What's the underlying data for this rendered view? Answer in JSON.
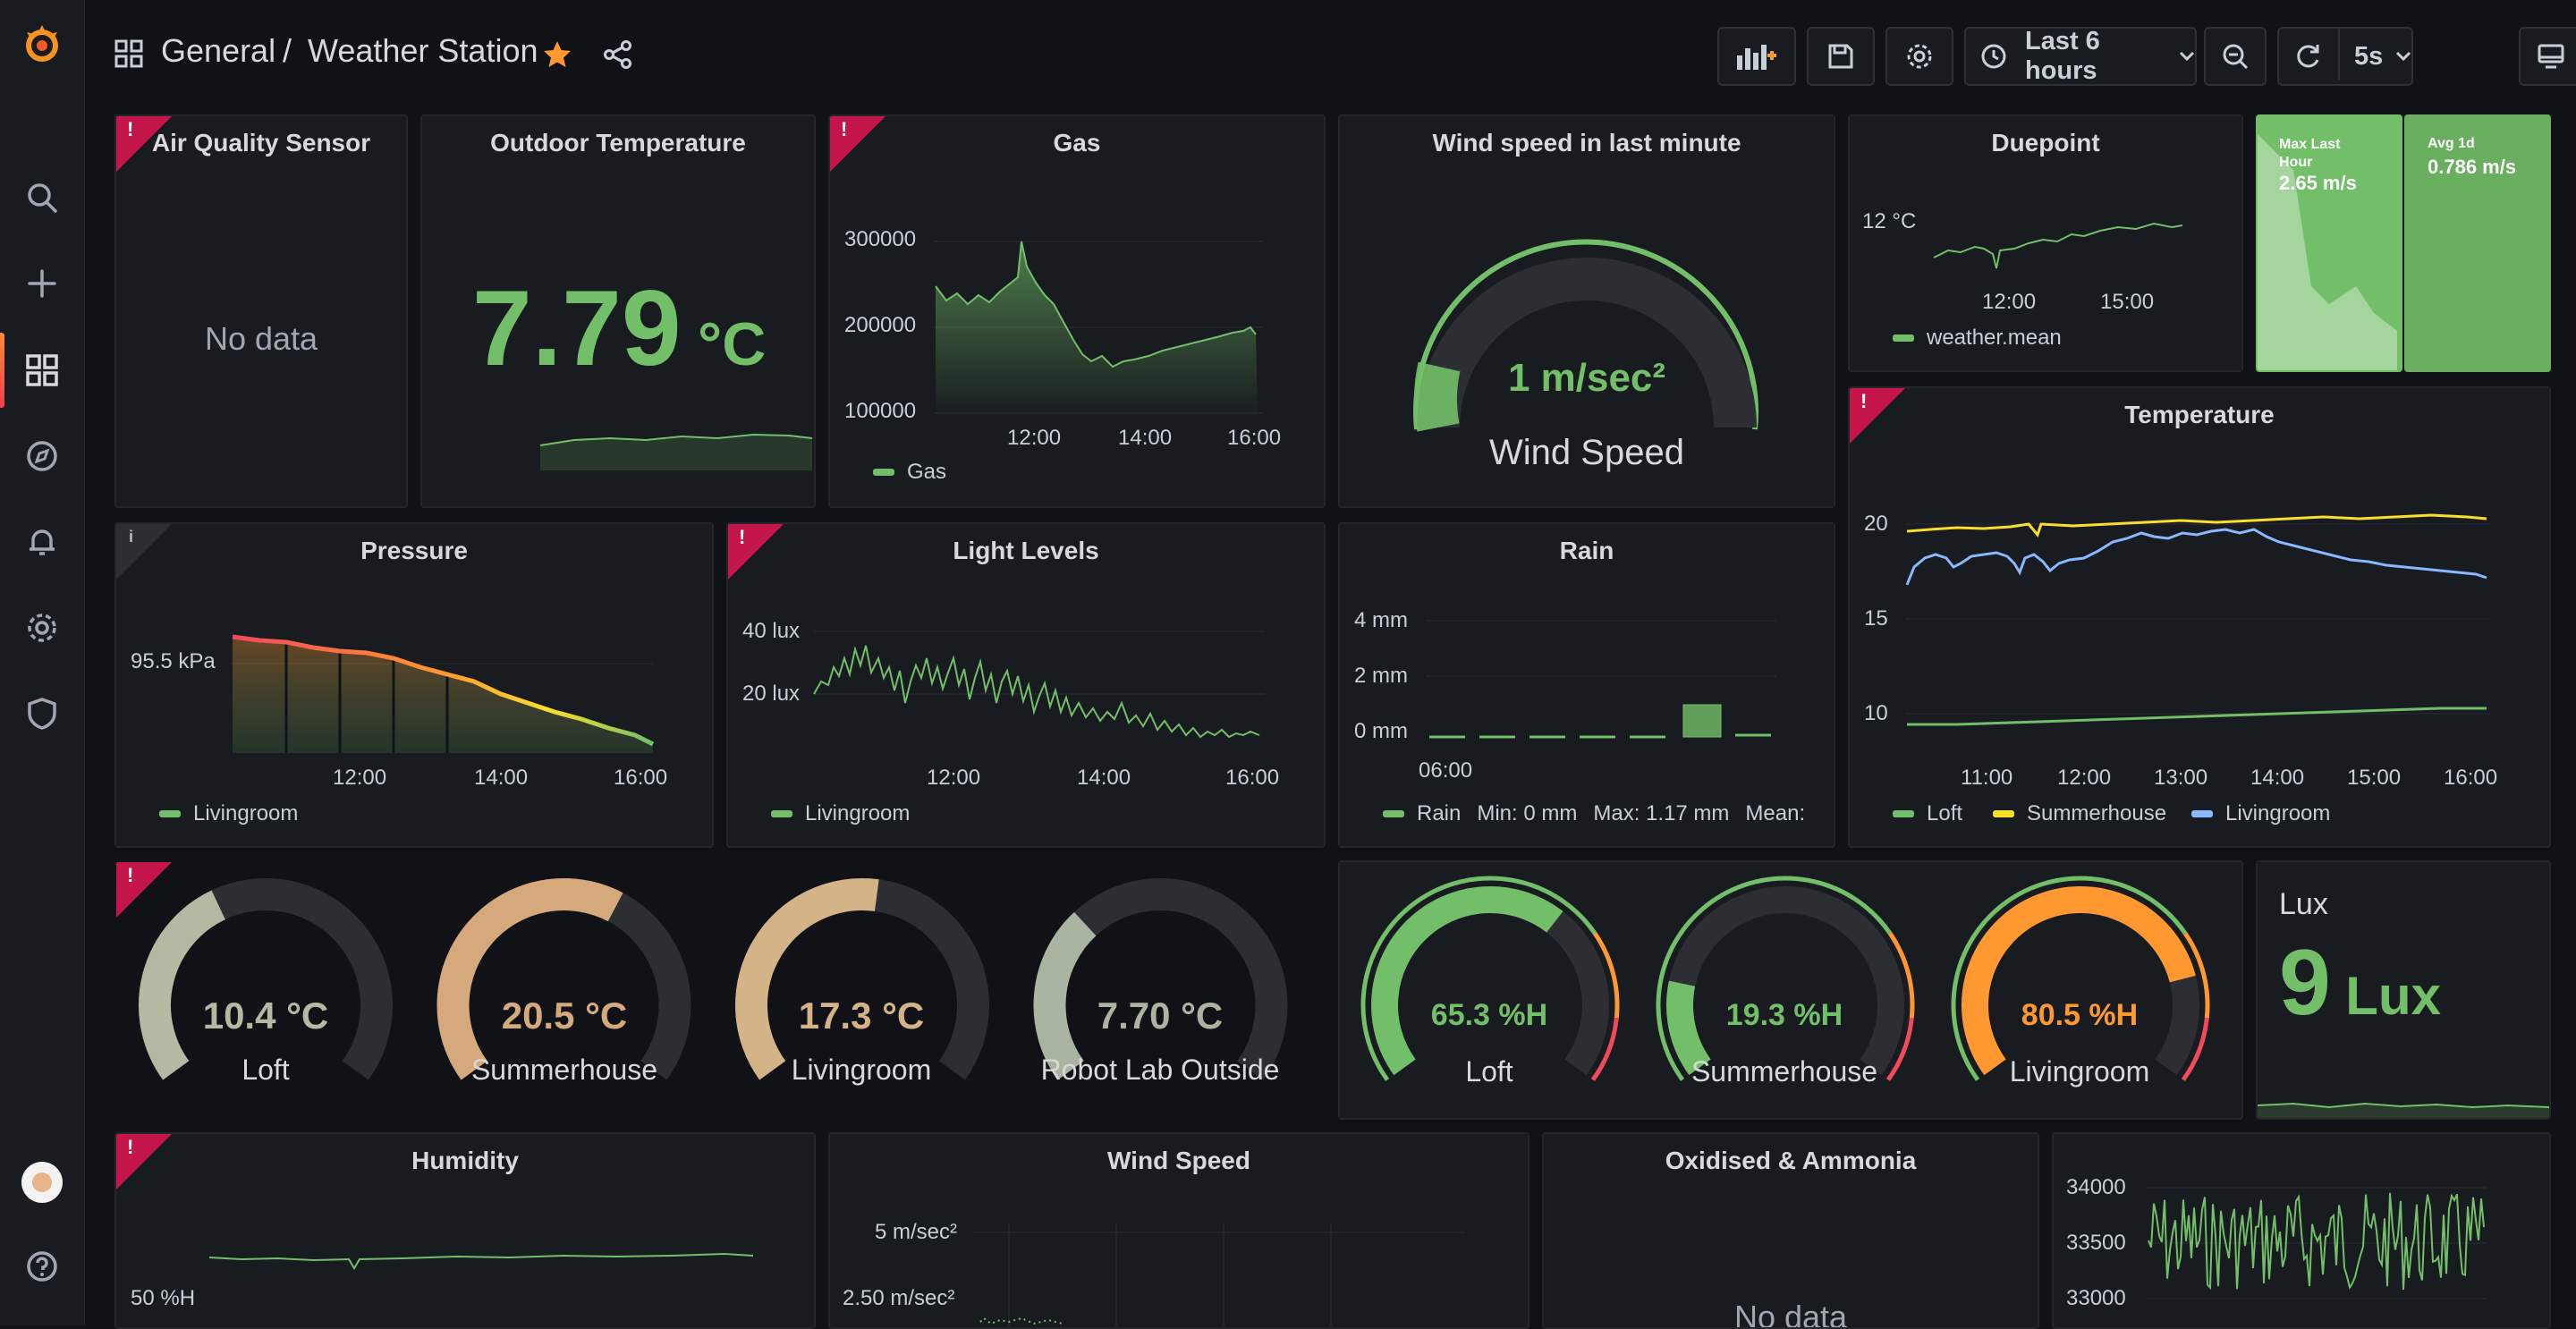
{
  "colors": {
    "green": "#73bf69",
    "orange": "#ff9830",
    "yellow": "#fade2a",
    "blue": "#8ab8ff",
    "red": "#f2495c",
    "accent": "#ff7f2a"
  },
  "header": {
    "folder": "General",
    "separator": "/",
    "dashboard": "Weather Station",
    "time_range": "Last 6 hours",
    "refresh": "5s",
    "icons": [
      "grafana-logo-icon",
      "dashboards-icon",
      "star-icon",
      "share-icon",
      "add-panel-icon",
      "save-icon",
      "gear-icon",
      "clock-icon",
      "chevron-down-icon",
      "zoom-out-icon",
      "refresh-icon",
      "tv-icon"
    ]
  },
  "sidebar": {
    "items": [
      "search-icon",
      "plus-icon",
      "dashboards-icon",
      "explore-icon",
      "alerting-icon",
      "configuration-icon",
      "shield-icon",
      "avatar",
      "help-icon"
    ]
  },
  "panels": {
    "air_quality": {
      "title": "Air Quality Sensor",
      "message": "No data"
    },
    "outdoor_temp": {
      "title": "Outdoor Temperature",
      "value": "7.79",
      "unit": "°C"
    },
    "gas": {
      "title": "Gas",
      "y_ticks": [
        "300000",
        "200000",
        "100000"
      ],
      "x_ticks": [
        "12:00",
        "14:00",
        "16:00"
      ],
      "legend": "Gas"
    },
    "wind_gauge": {
      "title": "Wind speed in last minute",
      "value": "1 m/sec²",
      "label": "Wind Speed",
      "level": 0.1
    },
    "duepoint": {
      "title": "Duepoint",
      "y_tick": "12 °C",
      "x_ticks": [
        "12:00",
        "15:00"
      ],
      "legend": "weather.mean"
    },
    "max_last_hour": {
      "label": "Max Last Hour",
      "value": "2.65 m/s"
    },
    "avg_1d": {
      "label": "Avg 1d",
      "value": "0.786 m/s"
    },
    "pressure": {
      "title": "Pressure",
      "y_tick": "95.5 kPa",
      "x_ticks": [
        "12:00",
        "14:00",
        "16:00"
      ],
      "legend": "Livingroom",
      "info": "i"
    },
    "light": {
      "title": "Light Levels",
      "y_ticks": [
        "40 lux",
        "20 lux"
      ],
      "x_ticks": [
        "12:00",
        "14:00",
        "16:00"
      ],
      "legend": "Livingroom"
    },
    "rain": {
      "title": "Rain",
      "y_ticks": [
        "4 mm",
        "2 mm",
        "0 mm"
      ],
      "x_tick": "06:00",
      "legend": "Rain",
      "min": "Min: 0 mm",
      "max": "Max: 1.17 mm",
      "mean": "Mean:"
    },
    "temperature": {
      "title": "Temperature",
      "y_ticks": [
        "20",
        "15",
        "10"
      ],
      "x_ticks": [
        "11:00",
        "12:00",
        "13:00",
        "14:00",
        "15:00",
        "16:00"
      ],
      "legends": [
        "Loft",
        "Summerhouse",
        "Livingroom"
      ]
    },
    "temp_gauges": [
      {
        "value": "10.4 °C",
        "label": "Loft",
        "color": "#b5b9a1",
        "level": 0.4
      },
      {
        "value": "20.5 °C",
        "label": "Summerhouse",
        "color": "#d6a97c",
        "level": 0.61
      },
      {
        "value": "17.3 °C",
        "label": "Livingroom",
        "color": "#d4b487",
        "level": 0.53
      },
      {
        "value": "7.70 °C",
        "label": "Robot Lab Outside",
        "color": "#aab5a1",
        "level": 0.33
      }
    ],
    "hum_gauges": [
      {
        "value": "65.3 %H",
        "label": "Loft",
        "color": "#73bf69",
        "level": 0.65
      },
      {
        "value": "19.3 %H",
        "label": "Summerhouse",
        "color": "#73bf69",
        "level": 0.19
      },
      {
        "value": "80.5 %H",
        "label": "Livingroom",
        "color": "#ff9830",
        "level": 0.8
      }
    ],
    "lux": {
      "title": "Lux",
      "value": "9",
      "unit": "Lux"
    },
    "humidity": {
      "title": "Humidity",
      "y_tick": "50 %H"
    },
    "wind_speed": {
      "title": "Wind Speed",
      "y_ticks": [
        "5 m/sec²",
        "2.50 m/sec²"
      ]
    },
    "oxidised": {
      "title": "Oxidised & Ammonia",
      "message": "No data"
    },
    "last_panel": {
      "y_ticks": [
        "34000",
        "33500",
        "33000"
      ]
    }
  }
}
